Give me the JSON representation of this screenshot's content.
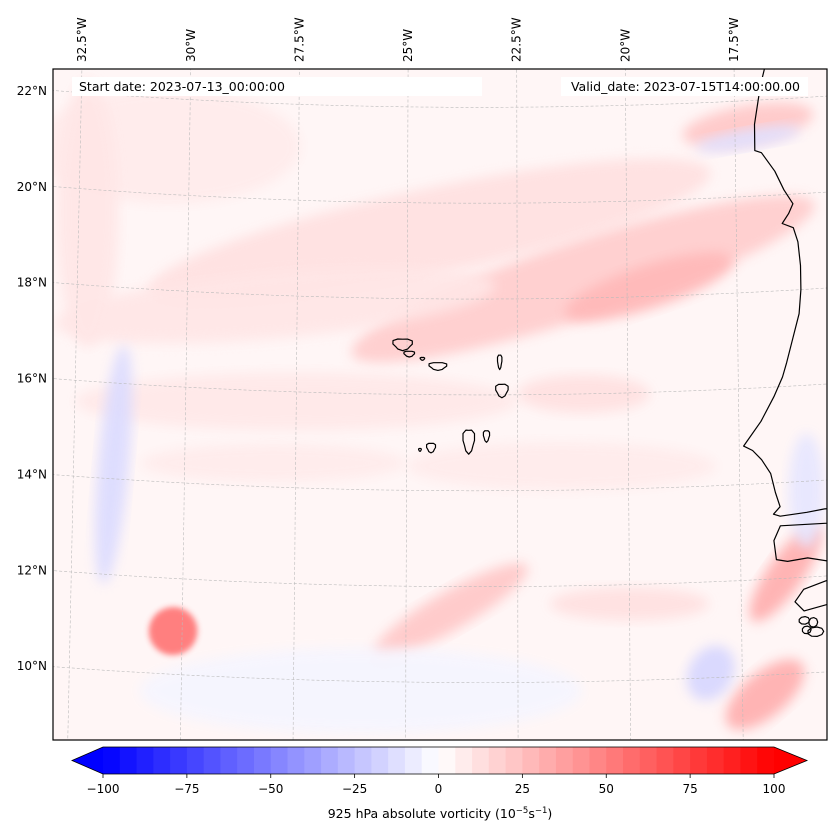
{
  "chart_data": {
    "type": "heatmap",
    "title": "",
    "annotations": {
      "start_date": "Start date: 2023-07-13_00:00:00",
      "valid_date": "Valid_date: 2023-07-15T14:00:00.00"
    },
    "map_extent": {
      "lon_min": -33.0,
      "lon_max": -15.5,
      "lat_min": 8.8,
      "lat_max": 22.8
    },
    "longitude_ticks": [
      {
        "value": -32.5,
        "label": "32.5°W"
      },
      {
        "value": -30.0,
        "label": "30°W"
      },
      {
        "value": -27.5,
        "label": "27.5°W"
      },
      {
        "value": -25.0,
        "label": "25°W"
      },
      {
        "value": -22.5,
        "label": "22.5°W"
      },
      {
        "value": -20.0,
        "label": "20°W"
      },
      {
        "value": -17.5,
        "label": "17.5°W"
      }
    ],
    "latitude_ticks": [
      {
        "value": 22,
        "label": "22°N"
      },
      {
        "value": 20,
        "label": "20°N"
      },
      {
        "value": 18,
        "label": "18°N"
      },
      {
        "value": 16,
        "label": "16°N"
      },
      {
        "value": 14,
        "label": "14°N"
      },
      {
        "value": 12,
        "label": "12°N"
      },
      {
        "value": 10,
        "label": "10°N"
      }
    ],
    "gridlines": true,
    "colorbar": {
      "orientation": "horizontal",
      "placement": "bottom",
      "cmap": "bwr",
      "vmin": -100,
      "vmax": 100,
      "level_step": 5,
      "extend": "both",
      "ticks": [
        -100,
        -75,
        -50,
        -25,
        0,
        25,
        50,
        75,
        100
      ],
      "tick_labels": [
        "−100",
        "−75",
        "−50",
        "−25",
        "0",
        "25",
        "50",
        "75",
        "100"
      ],
      "label_main": "925 hPa absolute vorticity (10",
      "label_exp1": "−5",
      "label_mid": "s",
      "label_exp2": "−1",
      "label_end": ")"
    },
    "features": [
      {
        "name": "intense positive vortex",
        "lon": -30.2,
        "lat": 10.9,
        "value_approx": 55
      },
      {
        "name": "NE-SW positive band (north)",
        "lon": -20.5,
        "lat": 18.5,
        "value_approx": 20
      },
      {
        "name": "positive band near coast (south)",
        "lon": -16.5,
        "lat": 12.0,
        "value_approx": 30
      },
      {
        "name": "positive band SE corner",
        "lon": -17.0,
        "lat": 9.5,
        "value_approx": 30
      },
      {
        "name": "positive band central",
        "lon": -24.0,
        "lat": 11.5,
        "value_approx": 20
      },
      {
        "name": "negative strip west",
        "lon": -32.0,
        "lat": 14.0,
        "value_approx": -12
      },
      {
        "name": "negative strip SE",
        "lon": -18.5,
        "lat": 10.0,
        "value_approx": -15
      }
    ],
    "coastlines": [
      "West Africa (Mauritania, Senegal, Gambia, Guinea-Bissau)",
      "Cape Verde islands"
    ]
  }
}
